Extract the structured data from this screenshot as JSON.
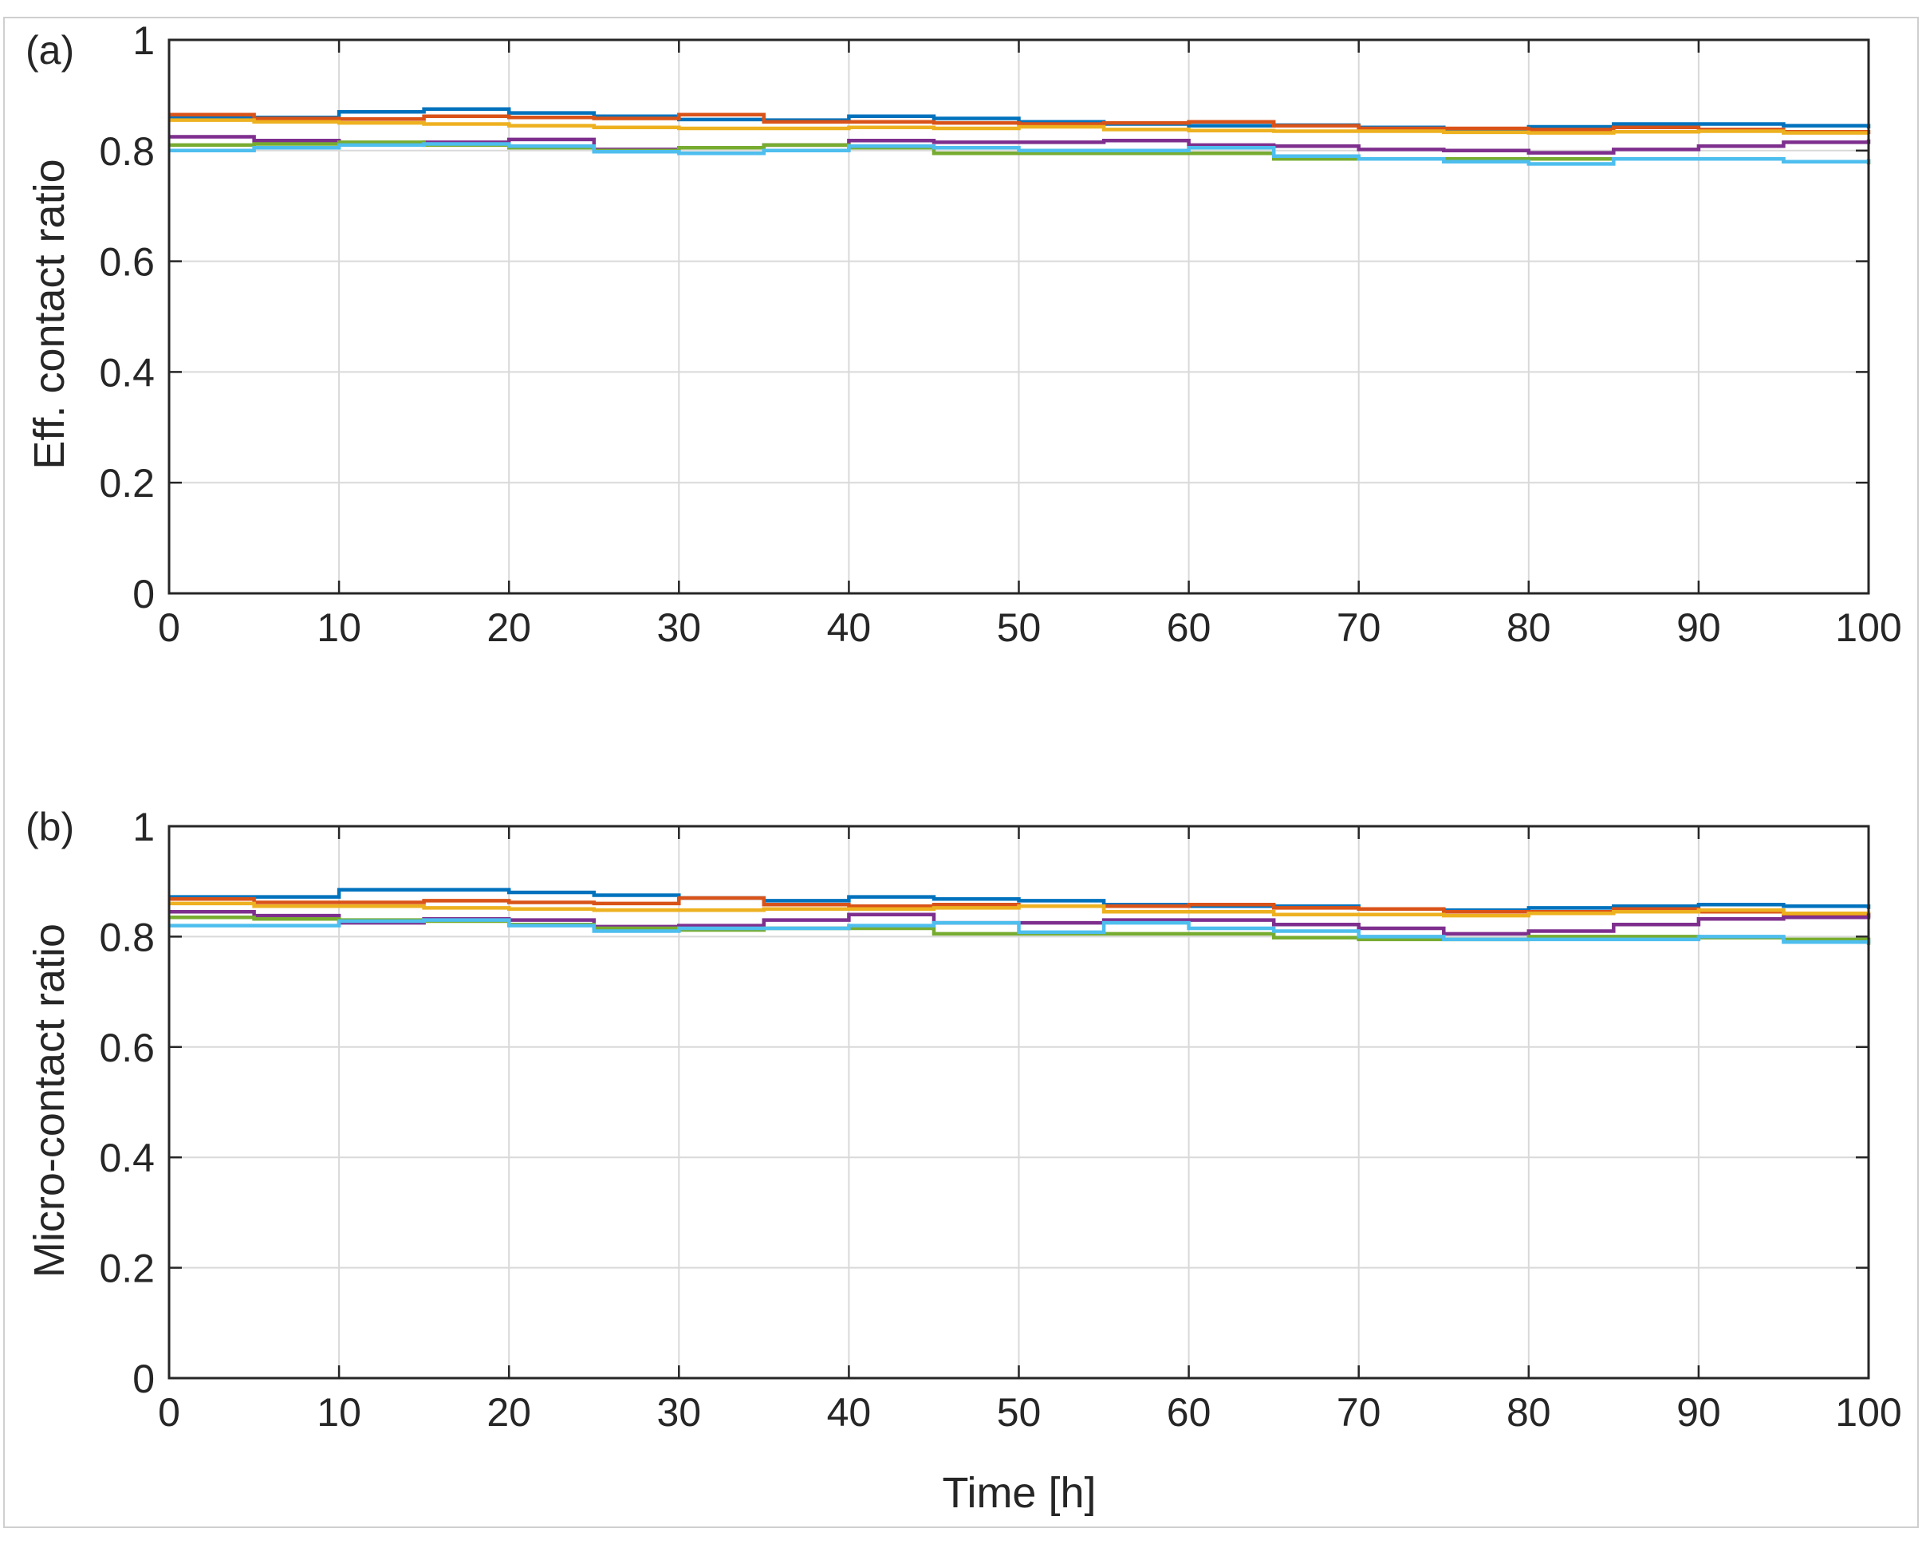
{
  "chart_data": [
    {
      "type": "line",
      "panel_label": "(a)",
      "xlabel": "",
      "ylabel": "Eff. contact ratio",
      "xlim": [
        0,
        100
      ],
      "ylim": [
        0,
        1
      ],
      "xticks": [
        "0",
        "10",
        "20",
        "30",
        "40",
        "50",
        "60",
        "70",
        "80",
        "90",
        "100"
      ],
      "yticks": [
        "0",
        "0.2",
        "0.4",
        "0.6",
        "0.8",
        "1"
      ],
      "grid": true,
      "x": [
        0,
        5,
        10,
        15,
        20,
        25,
        30,
        35,
        40,
        45,
        50,
        55,
        60,
        65,
        70,
        75,
        80,
        85,
        90,
        95,
        100
      ],
      "series": [
        {
          "color": "#0072BD",
          "values": [
            0.86,
            0.86,
            0.87,
            0.875,
            0.868,
            0.862,
            0.856,
            0.855,
            0.862,
            0.858,
            0.852,
            0.848,
            0.845,
            0.846,
            0.842,
            0.838,
            0.843,
            0.848,
            0.848,
            0.845,
            0.84
          ]
        },
        {
          "color": "#D95319",
          "values": [
            0.865,
            0.858,
            0.857,
            0.862,
            0.86,
            0.858,
            0.865,
            0.852,
            0.852,
            0.85,
            0.848,
            0.85,
            0.852,
            0.845,
            0.84,
            0.84,
            0.838,
            0.842,
            0.838,
            0.834,
            0.83
          ]
        },
        {
          "color": "#EDB120",
          "values": [
            0.855,
            0.852,
            0.85,
            0.848,
            0.845,
            0.842,
            0.84,
            0.84,
            0.842,
            0.84,
            0.843,
            0.838,
            0.836,
            0.835,
            0.835,
            0.833,
            0.832,
            0.834,
            0.835,
            0.832,
            0.832
          ]
        },
        {
          "color": "#7E2F8E",
          "values": [
            0.825,
            0.818,
            0.812,
            0.815,
            0.82,
            0.802,
            0.805,
            0.81,
            0.818,
            0.815,
            0.815,
            0.818,
            0.81,
            0.808,
            0.802,
            0.8,
            0.796,
            0.802,
            0.808,
            0.815,
            0.82
          ]
        },
        {
          "color": "#77AC30",
          "values": [
            0.81,
            0.812,
            0.815,
            0.81,
            0.805,
            0.8,
            0.805,
            0.81,
            0.805,
            0.795,
            0.795,
            0.795,
            0.795,
            0.785,
            0.785,
            0.785,
            0.785,
            0.785,
            0.785,
            0.78,
            0.775
          ]
        },
        {
          "color": "#4DBEEE",
          "values": [
            0.8,
            0.805,
            0.81,
            0.812,
            0.808,
            0.798,
            0.795,
            0.8,
            0.808,
            0.805,
            0.8,
            0.8,
            0.805,
            0.79,
            0.785,
            0.78,
            0.776,
            0.785,
            0.785,
            0.78,
            0.785
          ]
        }
      ]
    },
    {
      "type": "line",
      "panel_label": "(b)",
      "xlabel": "Time [h]",
      "ylabel": "Micro-contact ratio",
      "xlim": [
        0,
        100
      ],
      "ylim": [
        0,
        1
      ],
      "xticks": [
        "0",
        "10",
        "20",
        "30",
        "40",
        "50",
        "60",
        "70",
        "80",
        "90",
        "100"
      ],
      "yticks": [
        "0",
        "0.2",
        "0.4",
        "0.6",
        "0.8",
        "1"
      ],
      "grid": true,
      "x": [
        0,
        5,
        10,
        15,
        20,
        25,
        30,
        35,
        40,
        45,
        50,
        55,
        60,
        65,
        70,
        75,
        80,
        85,
        90,
        95,
        100
      ],
      "series": [
        {
          "color": "#0072BD",
          "values": [
            0.872,
            0.872,
            0.885,
            0.885,
            0.88,
            0.875,
            0.87,
            0.865,
            0.872,
            0.868,
            0.865,
            0.858,
            0.855,
            0.855,
            0.85,
            0.848,
            0.852,
            0.855,
            0.858,
            0.855,
            0.85
          ]
        },
        {
          "color": "#D95319",
          "values": [
            0.868,
            0.862,
            0.862,
            0.865,
            0.862,
            0.86,
            0.87,
            0.858,
            0.855,
            0.858,
            0.855,
            0.855,
            0.858,
            0.852,
            0.85,
            0.845,
            0.845,
            0.85,
            0.845,
            0.84,
            0.835
          ]
        },
        {
          "color": "#EDB120",
          "values": [
            0.86,
            0.855,
            0.855,
            0.852,
            0.85,
            0.848,
            0.848,
            0.85,
            0.85,
            0.852,
            0.855,
            0.845,
            0.845,
            0.84,
            0.84,
            0.838,
            0.842,
            0.845,
            0.848,
            0.842,
            0.84
          ]
        },
        {
          "color": "#7E2F8E",
          "values": [
            0.845,
            0.838,
            0.825,
            0.832,
            0.83,
            0.818,
            0.82,
            0.83,
            0.84,
            0.825,
            0.825,
            0.83,
            0.83,
            0.822,
            0.815,
            0.805,
            0.81,
            0.822,
            0.832,
            0.835,
            0.842
          ]
        },
        {
          "color": "#77AC30",
          "values": [
            0.835,
            0.832,
            0.83,
            0.828,
            0.822,
            0.815,
            0.812,
            0.815,
            0.815,
            0.805,
            0.805,
            0.805,
            0.805,
            0.798,
            0.795,
            0.795,
            0.8,
            0.8,
            0.798,
            0.795,
            0.785
          ]
        },
        {
          "color": "#4DBEEE",
          "values": [
            0.82,
            0.82,
            0.828,
            0.83,
            0.82,
            0.81,
            0.815,
            0.815,
            0.82,
            0.825,
            0.808,
            0.825,
            0.815,
            0.81,
            0.8,
            0.795,
            0.795,
            0.795,
            0.8,
            0.79,
            0.795
          ]
        }
      ]
    }
  ]
}
